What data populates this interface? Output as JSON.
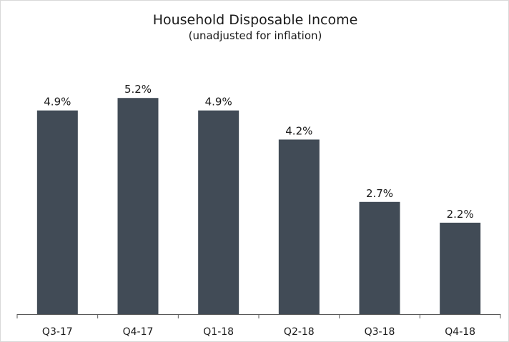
{
  "chart_data": {
    "type": "bar",
    "title": "Household Disposable Income",
    "subtitle": "(unadjusted for inflation)",
    "categories": [
      "Q3-17",
      "Q4-17",
      "Q1-18",
      "Q2-18",
      "Q3-18",
      "Q4-18"
    ],
    "values": [
      4.9,
      5.2,
      4.9,
      4.2,
      2.7,
      2.2
    ],
    "value_labels": [
      "4.9%",
      "5.2%",
      "4.9%",
      "4.2%",
      "2.7%",
      "2.2%"
    ],
    "xlabel": "",
    "ylabel": "",
    "ylim": [
      0,
      6.2
    ],
    "grid": false,
    "legend": "none",
    "bar_color": "#414b56"
  }
}
